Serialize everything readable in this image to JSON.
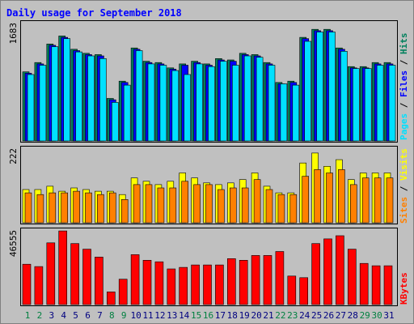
{
  "chart_data": [
    {
      "type": "bar",
      "title": "Daily usage for September 2018",
      "panel": "hits-files-pages",
      "ymax_label": "1683",
      "ylim": [
        0,
        1683
      ],
      "legend": [
        "Pages",
        "Files",
        "Hits"
      ],
      "legend_placement": "right-vertical",
      "categories": [
        "1",
        "2",
        "3",
        "4",
        "5",
        "6",
        "7",
        "8",
        "9",
        "10",
        "11",
        "12",
        "13",
        "14",
        "15",
        "16",
        "17",
        "18",
        "19",
        "20",
        "21",
        "22",
        "23",
        "24",
        "25",
        "26",
        "27",
        "28",
        "29",
        "30",
        "31"
      ],
      "weekend_days": [
        "1",
        "2",
        "8",
        "9",
        "15",
        "16",
        "22",
        "23",
        "29",
        "30"
      ],
      "series": [
        {
          "name": "Hits",
          "color": "#00805c",
          "values": [
            1040,
            1180,
            1460,
            1580,
            1380,
            1320,
            1300,
            640,
            900,
            1400,
            1200,
            1180,
            1100,
            1160,
            1200,
            1160,
            1240,
            1220,
            1320,
            1300,
            1180,
            880,
            900,
            1560,
            1680,
            1680,
            1400,
            1120,
            1120,
            1180,
            1180
          ]
        },
        {
          "name": "Files",
          "color": "#0000ff",
          "values": [
            1020,
            1160,
            1440,
            1560,
            1360,
            1300,
            1280,
            620,
            880,
            1380,
            1180,
            1160,
            1080,
            1140,
            1180,
            1140,
            1220,
            1200,
            1300,
            1280,
            1160,
            860,
            880,
            1540,
            1660,
            1660,
            1380,
            1100,
            1100,
            1160,
            1160
          ]
        },
        {
          "name": "Pages",
          "color": "#00e0ff",
          "values": [
            1000,
            1140,
            1420,
            1540,
            1340,
            1280,
            1240,
            580,
            840,
            1360,
            1160,
            1140,
            1060,
            1000,
            1160,
            1120,
            1200,
            1140,
            1280,
            1260,
            1140,
            860,
            840,
            1500,
            1640,
            1640,
            1350,
            1090,
            1090,
            1140,
            1140
          ]
        }
      ]
    },
    {
      "type": "bar",
      "panel": "visits-sites",
      "ymax_label": "222",
      "ylim": [
        0,
        222
      ],
      "legend": [
        "Sites",
        "Visits"
      ],
      "legend_placement": "right-vertical",
      "series": [
        {
          "name": "Visits",
          "color": "#ffff00",
          "values": [
            100,
            100,
            110,
            95,
            105,
            100,
            95,
            95,
            85,
            135,
            125,
            115,
            125,
            150,
            135,
            120,
            115,
            120,
            130,
            150,
            110,
            90,
            90,
            180,
            210,
            170,
            190,
            130,
            150,
            150,
            150
          ]
        },
        {
          "name": "Sites",
          "color": "#ff8000",
          "values": [
            90,
            85,
            90,
            90,
            95,
            90,
            85,
            90,
            70,
            115,
            115,
            105,
            105,
            125,
            115,
            115,
            100,
            105,
            105,
            130,
            100,
            85,
            85,
            140,
            160,
            150,
            160,
            115,
            135,
            135,
            135
          ]
        }
      ]
    },
    {
      "type": "bar",
      "panel": "kbytes",
      "ymax_label": "46555",
      "ylim": [
        0,
        46555
      ],
      "legend": [
        "KBytes"
      ],
      "legend_placement": "right-vertical",
      "series": [
        {
          "name": "KBytes",
          "color": "#ff0000",
          "values": [
            25500,
            24000,
            39000,
            46500,
            38500,
            35000,
            30000,
            8000,
            16000,
            31500,
            28000,
            27000,
            22500,
            23500,
            25000,
            25000,
            25000,
            29000,
            28000,
            31000,
            31000,
            33500,
            18000,
            17000,
            38500,
            41500,
            43500,
            35000,
            26000,
            24500,
            24500
          ]
        }
      ]
    }
  ],
  "colors": {
    "background": "#c0c0c0",
    "plot_background": "#c0c0c0",
    "title": "#0000ff",
    "weekend_label": "#008040",
    "weekday_label": "#000080"
  }
}
